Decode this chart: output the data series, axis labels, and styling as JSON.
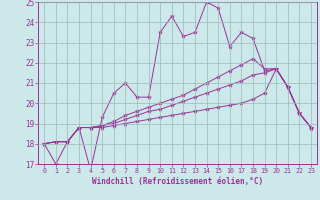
{
  "xlabel": "Windchill (Refroidissement éolien,°C)",
  "background_color": "#cce8e8",
  "line_color": "#993399",
  "grid_color": "#99bbbb",
  "xlim": [
    -0.5,
    23.5
  ],
  "ylim": [
    17,
    25
  ],
  "xticks": [
    0,
    1,
    2,
    3,
    4,
    5,
    6,
    7,
    8,
    9,
    10,
    11,
    12,
    13,
    14,
    15,
    16,
    17,
    18,
    19,
    20,
    21,
    22,
    23
  ],
  "yticks": [
    17,
    18,
    19,
    20,
    21,
    22,
    23,
    24,
    25
  ],
  "series": [
    [
      18.0,
      17.0,
      18.1,
      18.8,
      16.7,
      19.3,
      20.5,
      21.0,
      20.3,
      20.3,
      23.5,
      24.3,
      23.3,
      23.5,
      25.0,
      24.7,
      22.8,
      23.5,
      23.2,
      21.6,
      21.7,
      20.8,
      19.5,
      18.8
    ],
    [
      18.0,
      18.1,
      18.1,
      18.8,
      18.8,
      18.8,
      18.9,
      19.0,
      19.1,
      19.2,
      19.3,
      19.4,
      19.5,
      19.6,
      19.7,
      19.8,
      19.9,
      20.0,
      20.2,
      20.5,
      21.7,
      20.8,
      19.5,
      18.8
    ],
    [
      18.0,
      18.1,
      18.1,
      18.8,
      18.8,
      18.9,
      19.0,
      19.2,
      19.4,
      19.6,
      19.7,
      19.9,
      20.1,
      20.3,
      20.5,
      20.7,
      20.9,
      21.1,
      21.4,
      21.5,
      21.7,
      20.8,
      19.5,
      18.8
    ],
    [
      18.0,
      18.1,
      18.1,
      18.8,
      18.8,
      18.9,
      19.1,
      19.4,
      19.6,
      19.8,
      20.0,
      20.2,
      20.4,
      20.7,
      21.0,
      21.3,
      21.6,
      21.9,
      22.2,
      21.7,
      21.7,
      20.8,
      19.5,
      18.8
    ]
  ]
}
